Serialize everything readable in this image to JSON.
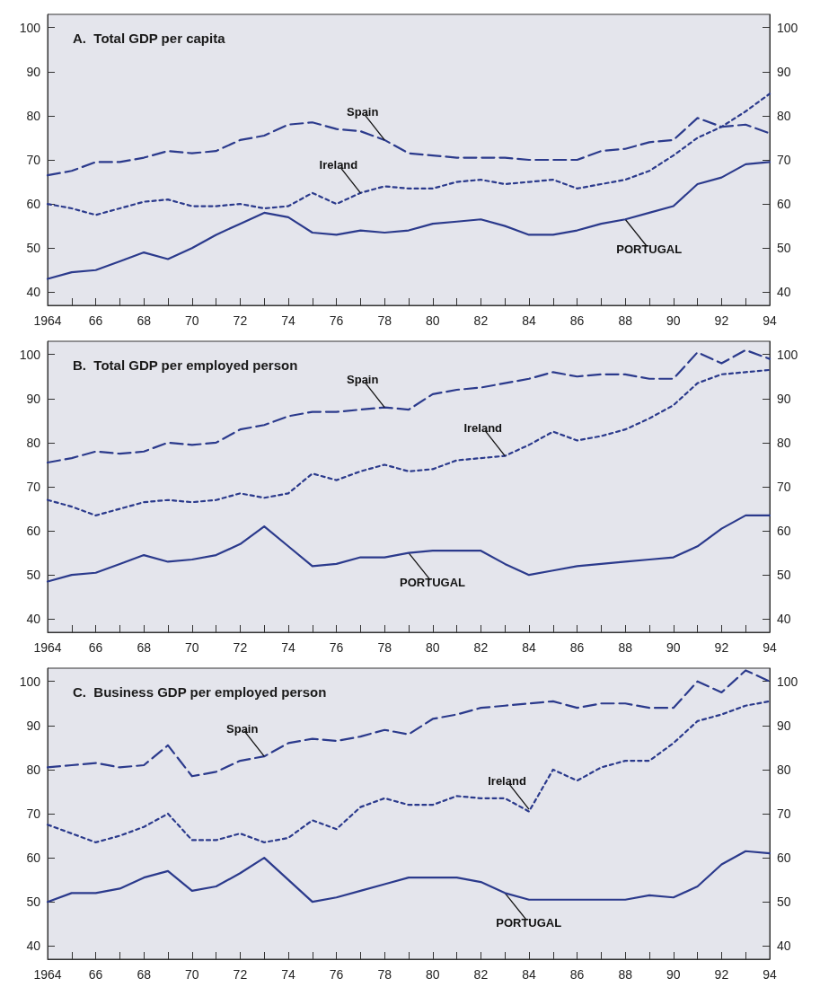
{
  "chart_data": [
    {
      "type": "line",
      "title": "A.  Total GDP per capita",
      "x": [
        1964,
        1965,
        1966,
        1967,
        1968,
        1969,
        1970,
        1971,
        1972,
        1973,
        1974,
        1975,
        1976,
        1977,
        1978,
        1979,
        1980,
        1981,
        1982,
        1983,
        1984,
        1985,
        1986,
        1987,
        1988,
        1989,
        1990,
        1991,
        1992,
        1993,
        1994
      ],
      "series": [
        {
          "color": "#2b3a8c",
          "line_style": "dashed",
          "values": [
            66.5,
            67.5,
            69.5,
            69.5,
            70.5,
            72,
            71.5,
            72,
            74.5,
            75.5,
            78,
            78.5,
            77,
            76.5,
            74.5,
            71.5,
            71,
            70.5,
            70.5,
            70.5,
            70,
            70,
            70,
            72,
            72.5,
            74,
            74.5,
            79.5,
            77.5,
            78,
            76
          ]
        },
        {
          "color": "#2b3a8c",
          "line_style": "dotted",
          "values": [
            60,
            59,
            57.5,
            59,
            60.5,
            61,
            59.5,
            59.5,
            60,
            59,
            59.5,
            62.5,
            60,
            62.5,
            64,
            63.5,
            63.5,
            65,
            65.5,
            64.5,
            65,
            65.5,
            63.5,
            64.5,
            65.5,
            67.5,
            71,
            75,
            77.5,
            81,
            85
          ]
        },
        {
          "color": "#2b3a8c",
          "line_style": "solid",
          "values": [
            43,
            44.5,
            45,
            47,
            49,
            47.5,
            50,
            53,
            55.5,
            58,
            57,
            53.5,
            53,
            54,
            53.5,
            54,
            55.5,
            56,
            56.5,
            55,
            53,
            53,
            54,
            55.5,
            56.5,
            58,
            59.5,
            64.5,
            66,
            69,
            69.5
          ]
        }
      ],
      "annotations": [
        {
          "text": "Spain",
          "x": 1978,
          "y": 74.5
        },
        {
          "text": "Ireland",
          "x": 1977,
          "y": 62.5
        },
        {
          "text": "PORTUGAL",
          "x": 1988,
          "y": 56.5
        }
      ],
      "xlim": [
        1964,
        1994
      ],
      "xticks": [
        {
          "value": 1964,
          "label": "1964"
        },
        {
          "value": 1965,
          "label": null
        },
        {
          "value": 1966,
          "label": "66"
        },
        {
          "value": 1967,
          "label": null
        },
        {
          "value": 1968,
          "label": "68"
        },
        {
          "value": 1969,
          "label": null
        },
        {
          "value": 1970,
          "label": "70"
        },
        {
          "value": 1971,
          "label": null
        },
        {
          "value": 1972,
          "label": "72"
        },
        {
          "value": 1973,
          "label": null
        },
        {
          "value": 1974,
          "label": "74"
        },
        {
          "value": 1975,
          "label": null
        },
        {
          "value": 1976,
          "label": "76"
        },
        {
          "value": 1977,
          "label": null
        },
        {
          "value": 1978,
          "label": "78"
        },
        {
          "value": 1979,
          "label": null
        },
        {
          "value": 1980,
          "label": "80"
        },
        {
          "value": 1981,
          "label": null
        },
        {
          "value": 1982,
          "label": "82"
        },
        {
          "value": 1983,
          "label": null
        },
        {
          "value": 1984,
          "label": "84"
        },
        {
          "value": 1985,
          "label": null
        },
        {
          "value": 1986,
          "label": "86"
        },
        {
          "value": 1987,
          "label": null
        },
        {
          "value": 1988,
          "label": "88"
        },
        {
          "value": 1989,
          "label": null
        },
        {
          "value": 1990,
          "label": "90"
        },
        {
          "value": 1991,
          "label": null
        },
        {
          "value": 1992,
          "label": "92"
        },
        {
          "value": 1993,
          "label": null
        },
        {
          "value": 1994,
          "label": "94"
        }
      ],
      "ylim": [
        37,
        103
      ],
      "yticks": [
        40,
        50,
        60,
        70,
        80,
        90,
        100
      ],
      "y2lim": [
        37,
        103
      ],
      "y2ticks": [
        40,
        50,
        60,
        70,
        80,
        90,
        100
      ],
      "grid": false
    },
    {
      "type": "line",
      "title": "B.  Total GDP per employed person",
      "x": [
        1964,
        1965,
        1966,
        1967,
        1968,
        1969,
        1970,
        1971,
        1972,
        1973,
        1974,
        1975,
        1976,
        1977,
        1978,
        1979,
        1980,
        1981,
        1982,
        1983,
        1984,
        1985,
        1986,
        1987,
        1988,
        1989,
        1990,
        1991,
        1992,
        1993,
        1994
      ],
      "series": [
        {
          "color": "#2b3a8c",
          "line_style": "dashed",
          "values": [
            75.5,
            76.5,
            78,
            77.5,
            78,
            80,
            79.5,
            80,
            83,
            84,
            86,
            87,
            87,
            87.5,
            88,
            87.5,
            91,
            92,
            92.5,
            93.5,
            94.5,
            96,
            95,
            95.5,
            95.5,
            94.5,
            94.5,
            100.5,
            98,
            101,
            99
          ]
        },
        {
          "color": "#2b3a8c",
          "line_style": "dotted",
          "values": [
            67,
            65.5,
            63.5,
            65,
            66.5,
            67,
            66.5,
            67,
            68.5,
            67.5,
            68.5,
            73,
            71.5,
            73.5,
            75,
            73.5,
            74,
            76,
            76.5,
            77,
            79.5,
            82.5,
            80.5,
            81.5,
            83,
            85.5,
            88.5,
            93.5,
            95.5,
            96,
            96.5
          ]
        },
        {
          "color": "#2b3a8c",
          "line_style": "solid",
          "values": [
            48.5,
            50,
            50.5,
            52.5,
            54.5,
            53,
            53.5,
            54.5,
            57,
            61,
            56.5,
            52,
            52.5,
            54,
            54,
            55,
            55.5,
            55.5,
            55.5,
            52.5,
            50,
            51,
            52,
            52.5,
            53,
            53.5,
            54,
            56.5,
            60.5,
            63.5,
            63.5
          ]
        }
      ],
      "annotations": [
        {
          "text": "Spain",
          "x": 1978,
          "y": 88
        },
        {
          "text": "Ireland",
          "x": 1983,
          "y": 77
        },
        {
          "text": "PORTUGAL",
          "x": 1979,
          "y": 55
        }
      ],
      "xlim": [
        1964,
        1994
      ],
      "xticks": [
        {
          "value": 1964,
          "label": "1964"
        },
        {
          "value": 1965,
          "label": null
        },
        {
          "value": 1966,
          "label": "66"
        },
        {
          "value": 1967,
          "label": null
        },
        {
          "value": 1968,
          "label": "68"
        },
        {
          "value": 1969,
          "label": null
        },
        {
          "value": 1970,
          "label": "70"
        },
        {
          "value": 1971,
          "label": null
        },
        {
          "value": 1972,
          "label": "72"
        },
        {
          "value": 1973,
          "label": null
        },
        {
          "value": 1974,
          "label": "74"
        },
        {
          "value": 1975,
          "label": null
        },
        {
          "value": 1976,
          "label": "76"
        },
        {
          "value": 1977,
          "label": null
        },
        {
          "value": 1978,
          "label": "78"
        },
        {
          "value": 1979,
          "label": null
        },
        {
          "value": 1980,
          "label": "80"
        },
        {
          "value": 1981,
          "label": null
        },
        {
          "value": 1982,
          "label": "82"
        },
        {
          "value": 1983,
          "label": null
        },
        {
          "value": 1984,
          "label": "84"
        },
        {
          "value": 1985,
          "label": null
        },
        {
          "value": 1986,
          "label": "86"
        },
        {
          "value": 1987,
          "label": null
        },
        {
          "value": 1988,
          "label": "88"
        },
        {
          "value": 1989,
          "label": null
        },
        {
          "value": 1990,
          "label": "90"
        },
        {
          "value": 1991,
          "label": null
        },
        {
          "value": 1992,
          "label": "92"
        },
        {
          "value": 1993,
          "label": null
        },
        {
          "value": 1994,
          "label": "94"
        }
      ],
      "ylim": [
        37,
        103
      ],
      "yticks": [
        40,
        50,
        60,
        70,
        80,
        90,
        100
      ],
      "y2lim": [
        37,
        103
      ],
      "y2ticks": [
        40,
        50,
        60,
        70,
        80,
        90,
        100
      ],
      "grid": false
    },
    {
      "type": "line",
      "title": "C.  Business GDP per employed person",
      "x": [
        1964,
        1965,
        1966,
        1967,
        1968,
        1969,
        1970,
        1971,
        1972,
        1973,
        1974,
        1975,
        1976,
        1977,
        1978,
        1979,
        1980,
        1981,
        1982,
        1983,
        1984,
        1985,
        1986,
        1987,
        1988,
        1989,
        1990,
        1991,
        1992,
        1993,
        1994
      ],
      "series": [
        {
          "color": "#2b3a8c",
          "line_style": "dashed",
          "values": [
            80.5,
            81,
            81.5,
            80.5,
            81,
            85.5,
            78.5,
            79.5,
            82,
            83,
            86,
            87,
            86.5,
            87.5,
            89,
            88,
            91.5,
            92.5,
            94,
            94.5,
            95,
            95.5,
            94,
            95,
            95,
            94,
            94,
            100,
            97.5,
            102.5,
            100
          ]
        },
        {
          "color": "#2b3a8c",
          "line_style": "dotted",
          "values": [
            67.5,
            65.5,
            63.5,
            65,
            67,
            70,
            64,
            64,
            65.5,
            63.5,
            64.5,
            68.5,
            66.5,
            71.5,
            73.5,
            72,
            72,
            74,
            73.5,
            73.5,
            70.5,
            80,
            77.5,
            80.5,
            82,
            82,
            86,
            91,
            92.5,
            94.5,
            95.5
          ]
        },
        {
          "color": "#2b3a8c",
          "line_style": "solid",
          "values": [
            50,
            52,
            52,
            53,
            55.5,
            57,
            52.5,
            53.5,
            56.5,
            60,
            55,
            50,
            51,
            52.5,
            54,
            55.5,
            55.5,
            55.5,
            54.5,
            52,
            50.5,
            50.5,
            50.5,
            50.5,
            50.5,
            51.5,
            51,
            53.5,
            58.5,
            61.5,
            61
          ]
        }
      ],
      "annotations": [
        {
          "text": "Spain",
          "x": 1973,
          "y": 83
        },
        {
          "text": "Ireland",
          "x": 1984,
          "y": 71
        },
        {
          "text": "PORTUGAL",
          "x": 1983,
          "y": 52
        }
      ],
      "xlim": [
        1964,
        1994
      ],
      "xticks": [
        {
          "value": 1964,
          "label": "1964"
        },
        {
          "value": 1965,
          "label": null
        },
        {
          "value": 1966,
          "label": "66"
        },
        {
          "value": 1967,
          "label": null
        },
        {
          "value": 1968,
          "label": "68"
        },
        {
          "value": 1969,
          "label": null
        },
        {
          "value": 1970,
          "label": "70"
        },
        {
          "value": 1971,
          "label": null
        },
        {
          "value": 1972,
          "label": "72"
        },
        {
          "value": 1973,
          "label": null
        },
        {
          "value": 1974,
          "label": "74"
        },
        {
          "value": 1975,
          "label": null
        },
        {
          "value": 1976,
          "label": "76"
        },
        {
          "value": 1977,
          "label": null
        },
        {
          "value": 1978,
          "label": "78"
        },
        {
          "value": 1979,
          "label": null
        },
        {
          "value": 1980,
          "label": "80"
        },
        {
          "value": 1981,
          "label": null
        },
        {
          "value": 1982,
          "label": "82"
        },
        {
          "value": 1983,
          "label": null
        },
        {
          "value": 1984,
          "label": "84"
        },
        {
          "value": 1985,
          "label": null
        },
        {
          "value": 1986,
          "label": "86"
        },
        {
          "value": 1987,
          "label": null
        },
        {
          "value": 1988,
          "label": "88"
        },
        {
          "value": 1989,
          "label": null
        },
        {
          "value": 1990,
          "label": "90"
        },
        {
          "value": 1991,
          "label": null
        },
        {
          "value": 1992,
          "label": "92"
        },
        {
          "value": 1993,
          "label": null
        },
        {
          "value": 1994,
          "label": "94"
        }
      ],
      "ylim": [
        37,
        103
      ],
      "yticks": [
        40,
        50,
        60,
        70,
        80,
        90,
        100
      ],
      "y2lim": [
        37,
        103
      ],
      "y2ticks": [
        40,
        50,
        60,
        70,
        80,
        90,
        100
      ],
      "grid": false
    }
  ]
}
